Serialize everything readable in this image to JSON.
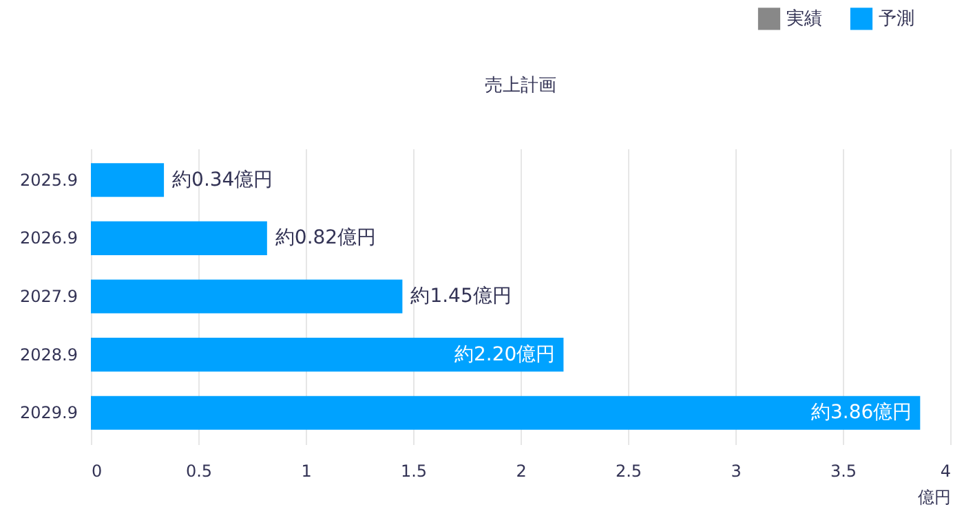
{
  "chart_data": {
    "type": "bar",
    "orientation": "horizontal",
    "title": "売上計画",
    "xlabel": "億円",
    "categories": [
      "2025.9",
      "2026.9",
      "2027.9",
      "2028.9",
      "2029.9"
    ],
    "series": [
      {
        "name": "実績",
        "color": "#888888",
        "values": [
          null,
          null,
          null,
          null,
          null
        ]
      },
      {
        "name": "予測",
        "color": "#00a2ff",
        "values": [
          0.34,
          0.82,
          1.45,
          2.2,
          3.86
        ],
        "value_labels": [
          "約0.34億円",
          "約0.82億円",
          "約1.45億円",
          "約2.20億円",
          "約3.86億円"
        ]
      }
    ],
    "xlim": [
      0,
      4
    ],
    "xticks": [
      0,
      0.5,
      1,
      1.5,
      2,
      2.5,
      3,
      3.5,
      4
    ],
    "grid": "x",
    "legend": "top right"
  }
}
